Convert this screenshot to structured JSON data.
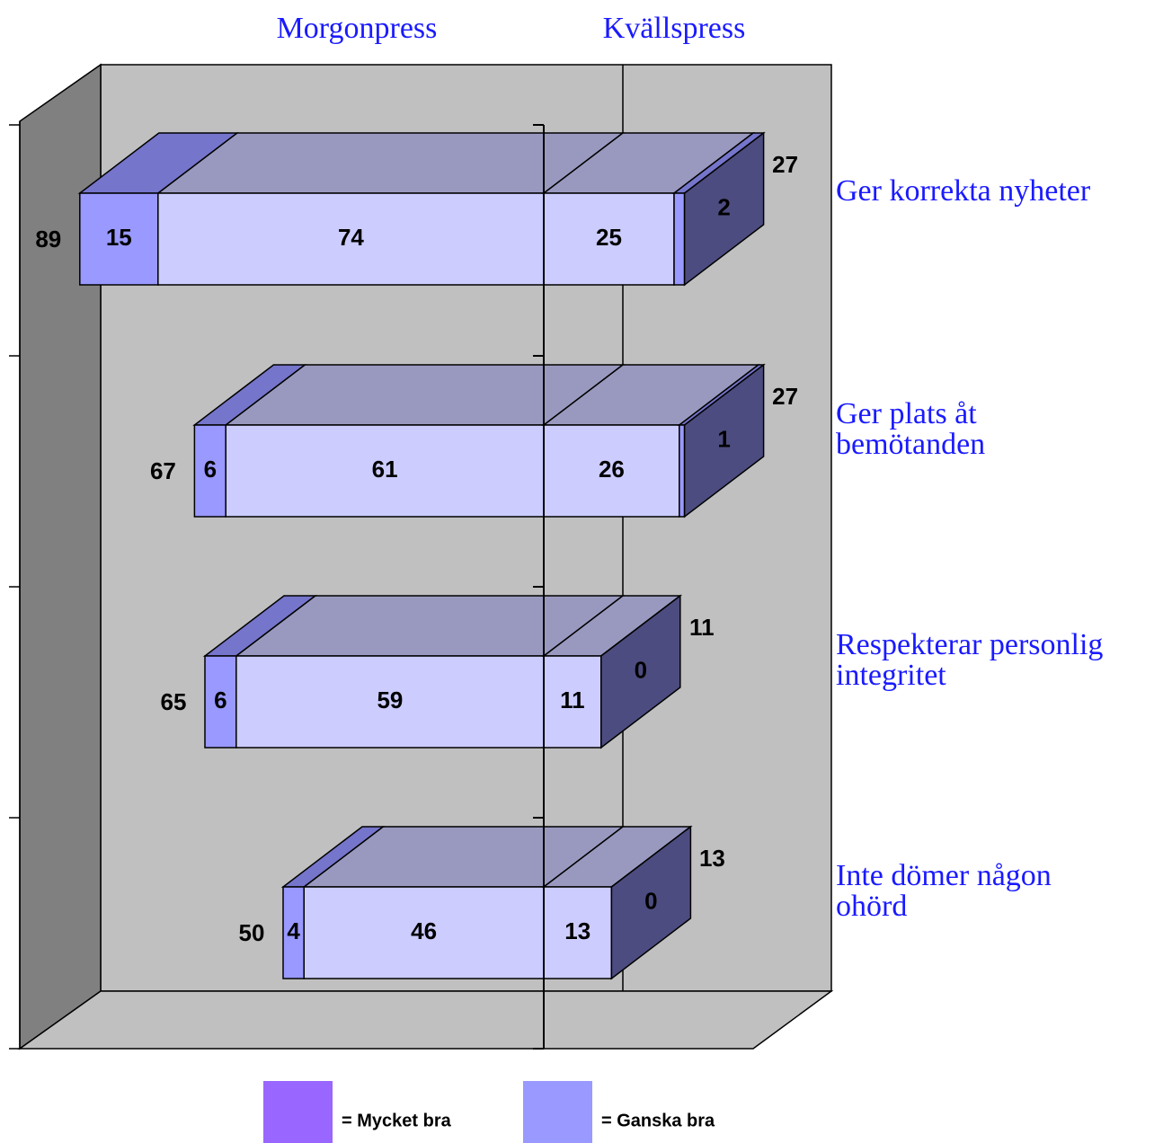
{
  "chart_data": {
    "type": "diverging-bar-3d",
    "groups": [
      "Morgonpress",
      "Kvällspress"
    ],
    "categories": [
      [
        "Ger korrekta nyheter"
      ],
      [
        "Ger plats åt",
        "bemötanden"
      ],
      [
        "Respekterar personlig",
        "integritet"
      ],
      [
        "Inte dömer någon",
        "ohörd"
      ]
    ],
    "series": [
      {
        "name": "= Mycket bra",
        "color": "#9999ff",
        "top_color": "#7575cc",
        "legend_color": "#9966ff",
        "morgon": [
          15,
          6,
          6,
          4
        ],
        "kvall": [
          2,
          1,
          0,
          0
        ]
      },
      {
        "name": "= Ganska bra",
        "color": "#ccccff",
        "top_color": "#9999c0",
        "legend_color": "#9999ff",
        "morgon": [
          74,
          61,
          59,
          46
        ],
        "kvall": [
          25,
          26,
          11,
          13
        ]
      }
    ],
    "morgon_totals": [
      89,
      67,
      65,
      50
    ],
    "kvall_totals": [
      27,
      27,
      11,
      13
    ],
    "end_color": "#4c4c80"
  }
}
